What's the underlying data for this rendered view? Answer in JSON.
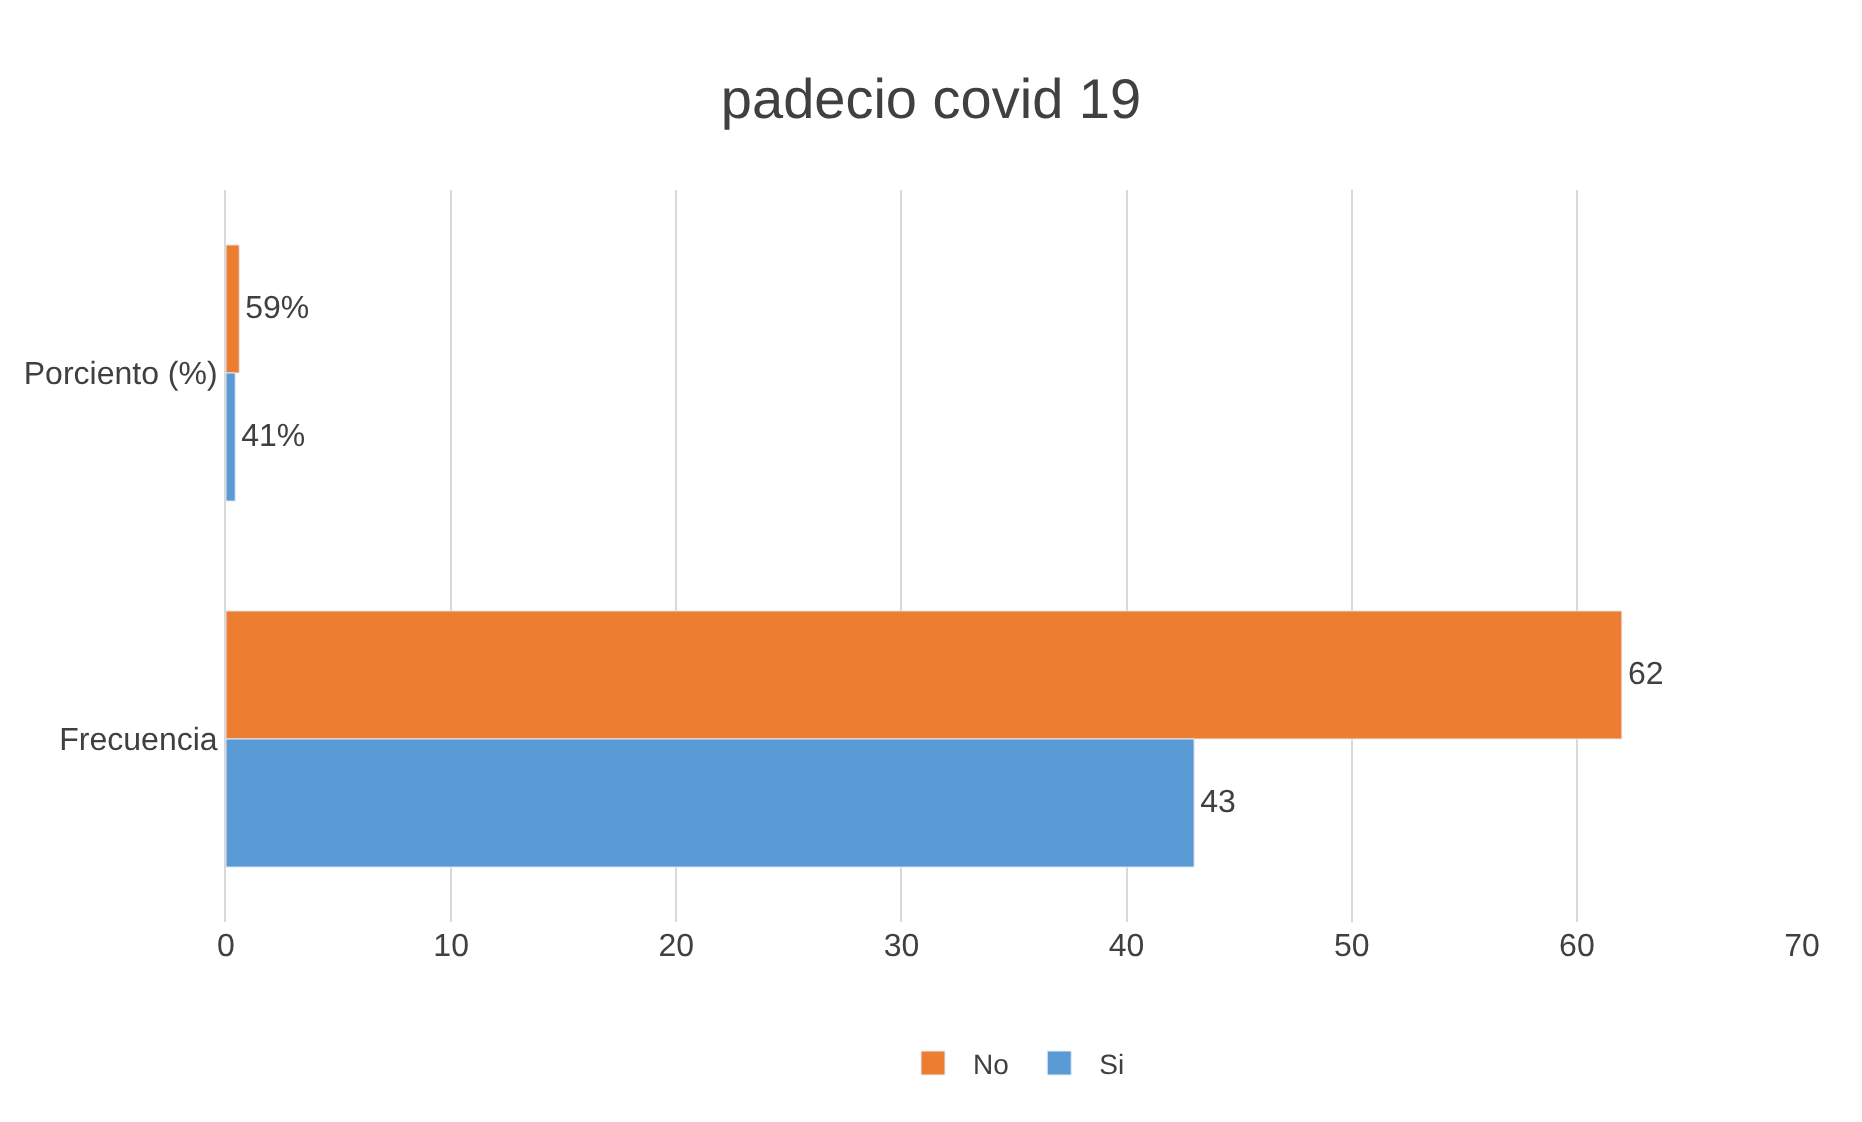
{
  "chart_data": {
    "type": "bar",
    "orientation": "horizontal",
    "title": "padecio covid 19",
    "categories": [
      "Porciento (%)",
      "Frecuencia"
    ],
    "series": [
      {
        "name": "No",
        "color": "#ed7d31",
        "values": [
          0.59,
          62
        ],
        "value_labels": [
          "59%",
          "62"
        ]
      },
      {
        "name": "Si",
        "color": "#5b9bd5",
        "values": [
          0.41,
          43
        ],
        "value_labels": [
          "41%",
          "43"
        ]
      }
    ],
    "xlim": [
      0,
      70
    ],
    "xticks": [
      0,
      10,
      20,
      30,
      40,
      50,
      60,
      70
    ],
    "grid": "x",
    "legend": "bottom"
  }
}
